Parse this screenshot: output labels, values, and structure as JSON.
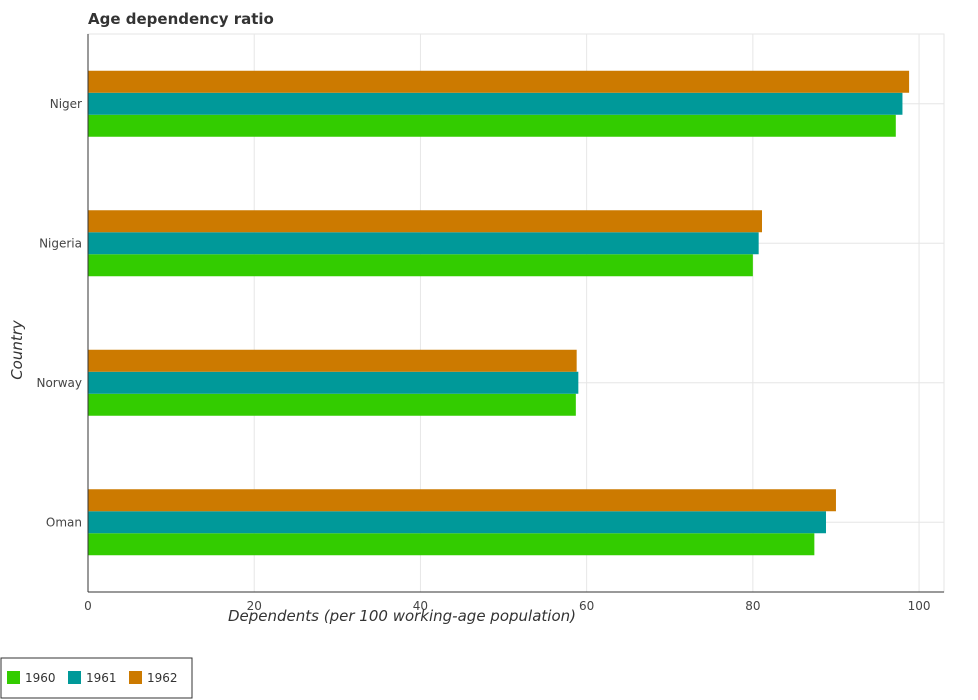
{
  "chart_data": {
    "type": "bar",
    "orientation": "horizontal",
    "title": "Age dependency ratio",
    "xlabel": "Dependents (per 100 working-age population)",
    "ylabel": "Country",
    "categories": [
      "Niger",
      "Nigeria",
      "Norway",
      "Oman"
    ],
    "xlim": [
      0,
      103
    ],
    "xticks": [
      0,
      20,
      40,
      60,
      80,
      100
    ],
    "grid": true,
    "legend_position": "bottom-left",
    "series": [
      {
        "name": "1960",
        "color": "#33cc00",
        "values": [
          97.2,
          80.0,
          58.7,
          87.4
        ]
      },
      {
        "name": "1961",
        "color": "#009999",
        "values": [
          98.0,
          80.7,
          59.0,
          88.8
        ]
      },
      {
        "name": "1962",
        "color": "#cc7a00",
        "values": [
          98.8,
          81.1,
          58.8,
          90.0
        ]
      }
    ]
  }
}
